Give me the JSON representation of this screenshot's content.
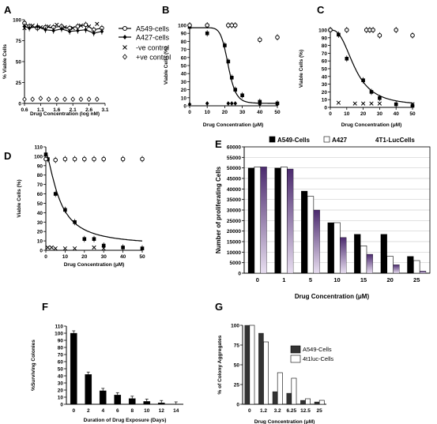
{
  "chart_data": [
    {
      "panel": "A",
      "type": "line",
      "xlabel": "Drug Concentration (log nM)",
      "ylabel": "% Viable Cells",
      "xlim": [
        0.6,
        3.1
      ],
      "ylim": [
        0,
        100
      ],
      "xticks": [
        "0.6",
        "1.1",
        "1.6",
        "2.1",
        "2.6",
        "3.1"
      ],
      "yticks": [
        "0",
        "25",
        "50",
        "75",
        "100"
      ],
      "series": [
        {
          "name": "A549-cells",
          "marker": "open-circle",
          "line": true,
          "x": [
            0.6,
            0.75,
            1.0,
            1.25,
            1.5,
            1.75,
            2.0,
            2.25,
            2.5,
            2.75,
            3.0
          ],
          "y": [
            96,
            92,
            90,
            91,
            91,
            92,
            90,
            92,
            94,
            88,
            90
          ]
        },
        {
          "name": "A427-cells",
          "marker": "filled-diamond",
          "line": true,
          "x": [
            0.6,
            0.75,
            1.0,
            1.25,
            1.5,
            1.75,
            2.0,
            2.25,
            2.5,
            2.75,
            3.0
          ],
          "y": [
            92,
            90,
            92,
            88,
            87,
            89,
            86,
            87,
            88,
            84,
            86
          ]
        },
        {
          "name": "-ve control",
          "marker": "x",
          "line": false,
          "x": [
            0.6,
            0.85,
            1.1,
            1.35,
            1.6,
            1.85,
            2.1,
            2.35,
            2.6,
            2.85
          ],
          "y": [
            90,
            93,
            91,
            92,
            94,
            91,
            90,
            93,
            92,
            95
          ]
        },
        {
          "name": "+ve control",
          "marker": "open-diamond",
          "line": false,
          "x": [
            0.6,
            0.85,
            1.1,
            1.35,
            1.6,
            1.85,
            2.1,
            2.35,
            2.6,
            2.85
          ],
          "y": [
            5,
            5,
            6,
            5,
            5,
            5,
            5,
            5,
            5,
            5
          ]
        }
      ]
    },
    {
      "panel": "B",
      "type": "scatter",
      "xlabel": "Drug Concentration (μM)",
      "ylabel": "Viable Cells (%)",
      "xlim": [
        0,
        50
      ],
      "ylim": [
        0,
        100
      ],
      "xticks": [
        "0",
        "10",
        "20",
        "30",
        "40",
        "50"
      ],
      "yticks": [
        "0",
        "10",
        "20",
        "30",
        "40",
        "50",
        "60",
        "70",
        "80",
        "90",
        "100"
      ],
      "series": [
        {
          "name": "",
          "marker": "filled-square",
          "x": [
            0,
            10,
            20,
            22,
            24,
            26,
            30,
            40,
            50
          ],
          "y": [
            98,
            90,
            75,
            55,
            35,
            20,
            13,
            5,
            3
          ]
        },
        {
          "name": "",
          "marker": "open-circle",
          "x": [
            0,
            10,
            22,
            24,
            26,
            40,
            50
          ],
          "y": [
            100,
            100,
            100,
            100,
            100,
            82,
            85
          ]
        },
        {
          "name": "",
          "marker": "filled-diamond",
          "x": [
            0,
            10,
            22,
            24,
            26,
            40,
            50
          ],
          "y": [
            2,
            3,
            3,
            3,
            3,
            2,
            2
          ]
        }
      ],
      "fit": {
        "top": 97,
        "bottom": 3,
        "ec50": 22,
        "hill": 10
      }
    },
    {
      "panel": "C",
      "type": "scatter",
      "xlabel": "Drug Concentration (μM)",
      "ylabel": "Viable Cells (%)",
      "xlim": [
        0,
        50
      ],
      "ylim": [
        0,
        100
      ],
      "xticks": [
        "0",
        "10",
        "20",
        "30",
        "40",
        "50"
      ],
      "yticks": [
        "0",
        "10",
        "20",
        "30",
        "40",
        "50",
        "60",
        "70",
        "80",
        "90",
        "100"
      ],
      "series": [
        {
          "name": "",
          "marker": "filled-square",
          "x": [
            0,
            5,
            10,
            20,
            25,
            30,
            40,
            50
          ],
          "y": [
            100,
            94,
            63,
            35,
            20,
            12,
            4,
            2
          ]
        },
        {
          "name": "",
          "marker": "open-circle",
          "x": [
            0,
            10,
            22,
            24,
            26,
            30,
            40,
            50
          ],
          "y": [
            100,
            100,
            100,
            100,
            100,
            93,
            100,
            93
          ]
        },
        {
          "name": "",
          "marker": "x",
          "x": [
            5,
            15,
            20,
            25,
            30,
            50
          ],
          "y": [
            6,
            5,
            5,
            5,
            5,
            4
          ]
        }
      ],
      "fit": {
        "top": 100,
        "bottom": 2,
        "ec50": 15,
        "hill": 2.7
      }
    },
    {
      "panel": "D",
      "type": "scatter",
      "xlabel": "Drug Concentration (μM)",
      "ylabel": "Viable Cells (%)",
      "xlim": [
        0,
        50
      ],
      "ylim": [
        0,
        110
      ],
      "xticks": [
        "0",
        "10",
        "20",
        "30",
        "40",
        "50"
      ],
      "yticks": [
        "0",
        "10",
        "20",
        "30",
        "40",
        "50",
        "60",
        "70",
        "80",
        "90",
        "100",
        "110"
      ],
      "series": [
        {
          "name": "",
          "marker": "filled-square",
          "x": [
            0,
            1,
            5,
            10,
            15,
            20,
            25,
            30,
            40,
            50
          ],
          "y": [
            102,
            97,
            60,
            43,
            30,
            12,
            12,
            5,
            3,
            2
          ]
        },
        {
          "name": "",
          "marker": "open-circle",
          "x": [
            0,
            5,
            10,
            15,
            20,
            25,
            30,
            40,
            50
          ],
          "y": [
            97,
            96,
            97,
            97,
            97,
            97,
            97,
            97,
            97
          ]
        },
        {
          "name": "",
          "marker": "x",
          "x": [
            1,
            3,
            5,
            10,
            15,
            25,
            30
          ],
          "y": [
            3,
            3,
            2,
            2,
            2,
            3,
            2
          ]
        }
      ],
      "fit": {
        "top": 104,
        "bottom": 5,
        "ec50": 7,
        "hill": 1.5
      }
    },
    {
      "panel": "E",
      "type": "bar",
      "xlabel": "Drug Concentration (μM)",
      "ylabel": "Number of proliferating Cells",
      "ylim": [
        0,
        60000
      ],
      "yticks": [
        "0",
        "5000",
        "10000",
        "15000",
        "20000",
        "25000",
        "30000",
        "35000",
        "40000",
        "45000",
        "50000",
        "55000",
        "60000"
      ],
      "categories": [
        "0",
        "1",
        "5",
        "10",
        "15",
        "20",
        "25"
      ],
      "series": [
        {
          "name": "A549-Cells",
          "color": "#000000",
          "values": [
            50000,
            50000,
            39000,
            24000,
            18500,
            18500,
            8000
          ]
        },
        {
          "name": "A427",
          "color": "#ffffff",
          "values": [
            50500,
            50500,
            36500,
            24000,
            13000,
            8000,
            6000
          ]
        },
        {
          "name": "4T1-LucCells",
          "color": "#7a4c9a",
          "values": [
            50500,
            49500,
            30000,
            17000,
            9000,
            4000,
            1000
          ]
        }
      ]
    },
    {
      "panel": "F",
      "type": "bar",
      "xlabel": "Duration of Drug Exposure (Days)",
      "ylabel": "%Surviving Colonies",
      "ylim": [
        0,
        110
      ],
      "yticks": [
        "0",
        "10",
        "20",
        "30",
        "40",
        "50",
        "60",
        "70",
        "80",
        "90",
        "100",
        "110"
      ],
      "categories": [
        "0",
        "2",
        "4",
        "6",
        "8",
        "10",
        "12",
        "14"
      ],
      "series": [
        {
          "name": "",
          "color": "#000000",
          "values": [
            100,
            42,
            19,
            13,
            8,
            4,
            2,
            0
          ]
        }
      ]
    },
    {
      "panel": "G",
      "type": "bar",
      "xlabel": "Drug Concentration (μM)",
      "ylabel": "% of Colony Aggregates",
      "ylim": [
        0,
        100
      ],
      "yticks": [
        "0",
        "25",
        "50",
        "75",
        "100"
      ],
      "categories": [
        "0",
        "1.2",
        "3.2",
        "6.25",
        "12.5",
        "25"
      ],
      "series": [
        {
          "name": "A549-Cells",
          "color": "#333333",
          "values": [
            100,
            90,
            16,
            14,
            5,
            3
          ]
        },
        {
          "name": "4t1luc-Cells",
          "color": "#ffffff",
          "values": [
            100,
            79,
            40,
            33,
            7,
            5
          ]
        }
      ]
    }
  ]
}
